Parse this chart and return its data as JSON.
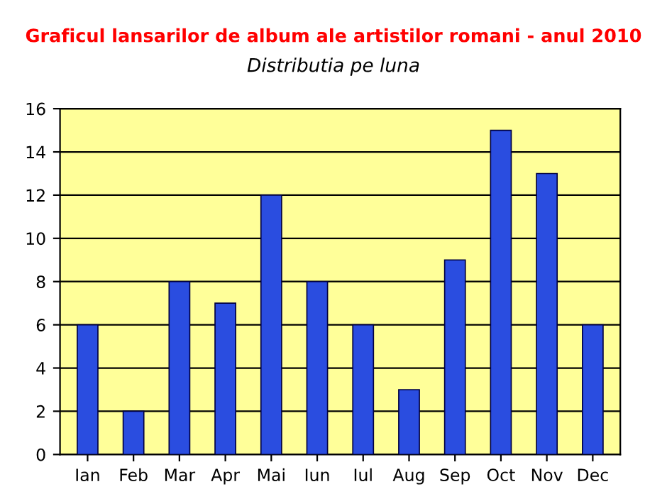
{
  "chart_data": {
    "type": "bar",
    "title": "Graficul lansarilor de album ale artistilor romani - anul 2010",
    "subtitle": "Distributia pe luna",
    "categories": [
      "Ian",
      "Feb",
      "Mar",
      "Apr",
      "Mai",
      "Iun",
      "Iul",
      "Aug",
      "Sep",
      "Oct",
      "Nov",
      "Dec"
    ],
    "values": [
      6,
      2,
      8,
      7,
      12,
      8,
      6,
      3,
      9,
      15,
      13,
      6
    ],
    "color": "#2a4de0",
    "ylim": [
      0,
      16
    ],
    "yticks": [
      0,
      2,
      4,
      6,
      8,
      10,
      12,
      14,
      16
    ],
    "grid": "y",
    "legend": false
  }
}
